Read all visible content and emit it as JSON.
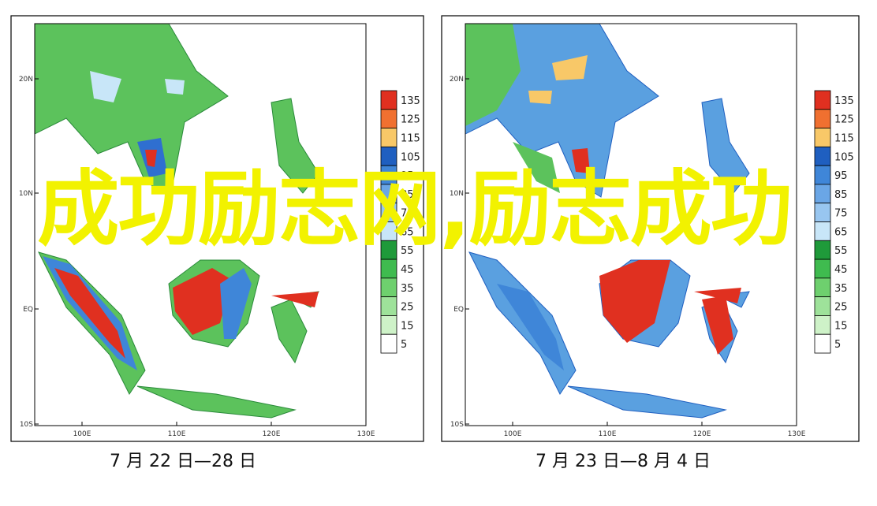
{
  "overlay_title": "成功励志网,励志成功",
  "lat_labels": [
    "20N",
    "10N",
    "EQ",
    "10S"
  ],
  "lon_labels": [
    "100E",
    "110E",
    "120E",
    "130E"
  ],
  "colorbar": {
    "levels": [
      135,
      125,
      115,
      105,
      95,
      85,
      75,
      65,
      55,
      45,
      35,
      25,
      15,
      5
    ],
    "colors": [
      "#e03020",
      "#f07030",
      "#f8c868",
      "#1f5fc0",
      "#3f86d8",
      "#6aa6e6",
      "#98c6f0",
      "#c8e6f8",
      "#1f9a3a",
      "#3fbb4f",
      "#6ed06e",
      "#9ee29a",
      "#cef2c8",
      "#ffffff"
    ]
  },
  "panels": [
    {
      "caption": "7 月 22 日—28 日"
    },
    {
      "caption": "7 月 23 日—8 月 4 日"
    }
  ]
}
